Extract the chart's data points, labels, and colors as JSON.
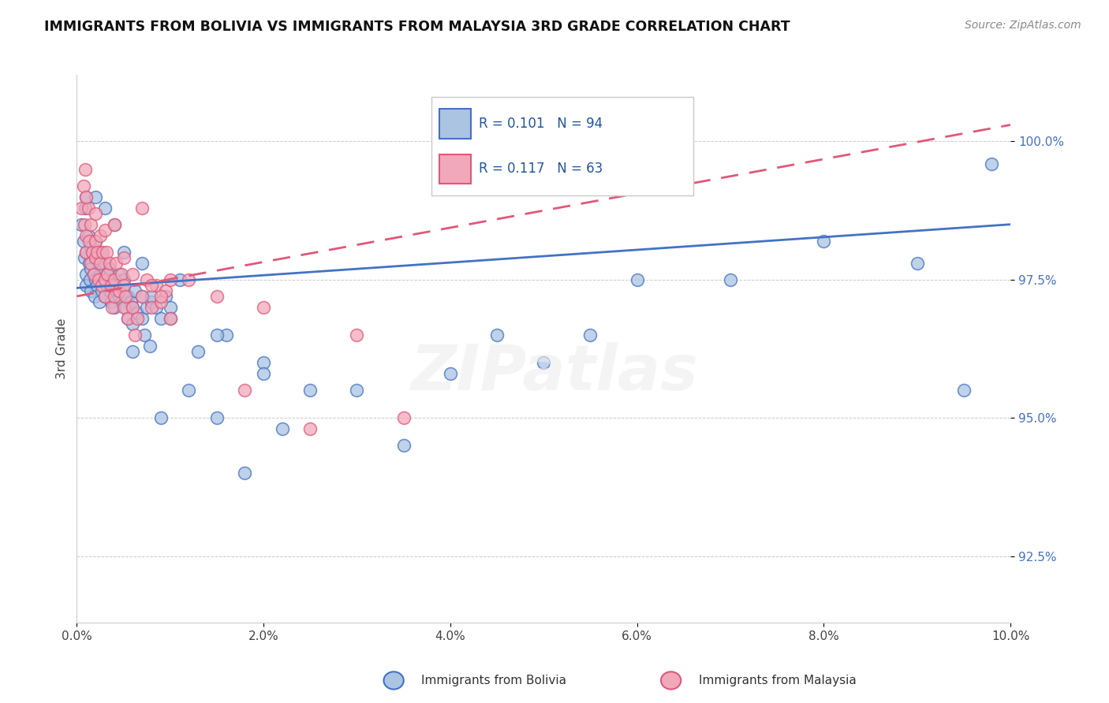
{
  "title": "IMMIGRANTS FROM BOLIVIA VS IMMIGRANTS FROM MALAYSIA 3RD GRADE CORRELATION CHART",
  "source": "Source: ZipAtlas.com",
  "xlabel_bolivia": "Immigrants from Bolivia",
  "xlabel_malaysia": "Immigrants from Malaysia",
  "ylabel": "3rd Grade",
  "xlim": [
    0.0,
    10.0
  ],
  "ylim": [
    91.3,
    101.2
  ],
  "yticks": [
    92.5,
    95.0,
    97.5,
    100.0
  ],
  "xticks": [
    0.0,
    2.0,
    4.0,
    6.0,
    8.0,
    10.0
  ],
  "xtick_labels": [
    "0.0%",
    "2.0%",
    "4.0%",
    "6.0%",
    "8.0%",
    "10.0%"
  ],
  "ytick_labels": [
    "92.5%",
    "95.0%",
    "97.5%",
    "100.0%"
  ],
  "color_bolivia": "#aac4e2",
  "color_malaysia": "#f2a8bb",
  "line_color_bolivia": "#4472c4",
  "line_color_malaysia": "#e05878",
  "R_bolivia": 0.101,
  "N_bolivia": 94,
  "R_malaysia": 0.117,
  "N_malaysia": 63,
  "legend_text_color": "#2155a0",
  "trendline_bolivia_x0": 0.0,
  "trendline_bolivia_y0": 97.35,
  "trendline_bolivia_x1": 10.0,
  "trendline_bolivia_y1": 98.5,
  "trendline_malaysia_x0": 0.0,
  "trendline_malaysia_y0": 97.2,
  "trendline_malaysia_x1": 10.0,
  "trendline_malaysia_y1": 100.3,
  "bolivia_x": [
    0.05,
    0.07,
    0.08,
    0.09,
    0.1,
    0.1,
    0.1,
    0.12,
    0.13,
    0.14,
    0.15,
    0.15,
    0.15,
    0.17,
    0.18,
    0.19,
    0.2,
    0.2,
    0.2,
    0.22,
    0.23,
    0.24,
    0.25,
    0.25,
    0.27,
    0.28,
    0.3,
    0.3,
    0.3,
    0.32,
    0.33,
    0.35,
    0.35,
    0.37,
    0.38,
    0.4,
    0.4,
    0.42,
    0.45,
    0.45,
    0.48,
    0.5,
    0.5,
    0.52,
    0.55,
    0.55,
    0.58,
    0.6,
    0.6,
    0.62,
    0.65,
    0.7,
    0.7,
    0.72,
    0.75,
    0.78,
    0.8,
    0.85,
    0.9,
    0.95,
    1.0,
    1.1,
    1.2,
    1.3,
    1.5,
    1.6,
    1.8,
    2.0,
    2.2,
    2.5,
    3.0,
    3.5,
    4.0,
    4.5,
    5.0,
    5.5,
    6.0,
    7.0,
    8.0,
    9.0,
    9.5,
    9.8,
    0.1,
    0.2,
    0.3,
    0.4,
    0.5,
    0.6,
    0.7,
    0.8,
    0.9,
    1.0,
    1.5,
    2.0
  ],
  "bolivia_y": [
    98.5,
    98.2,
    97.9,
    98.8,
    97.6,
    98.0,
    97.4,
    98.3,
    97.8,
    97.5,
    98.1,
    97.7,
    97.3,
    98.0,
    97.6,
    97.2,
    97.9,
    97.5,
    98.2,
    97.4,
    97.8,
    97.1,
    97.6,
    98.0,
    97.3,
    97.7,
    97.5,
    97.2,
    97.8,
    97.4,
    97.6,
    97.3,
    97.7,
    97.1,
    97.5,
    97.4,
    97.0,
    97.3,
    97.6,
    97.2,
    97.1,
    97.5,
    97.3,
    97.0,
    97.2,
    96.8,
    97.1,
    97.0,
    96.7,
    97.3,
    96.9,
    96.8,
    97.2,
    96.5,
    97.0,
    96.3,
    97.1,
    97.0,
    96.8,
    97.2,
    97.0,
    97.5,
    95.5,
    96.2,
    95.0,
    96.5,
    94.0,
    96.0,
    94.8,
    95.5,
    95.5,
    94.5,
    95.8,
    96.5,
    96.0,
    96.5,
    97.5,
    97.5,
    98.2,
    97.8,
    95.5,
    99.6,
    99.0,
    99.0,
    98.8,
    98.5,
    98.0,
    96.2,
    97.8,
    97.2,
    95.0,
    96.8,
    96.5,
    95.8
  ],
  "malaysia_x": [
    0.05,
    0.07,
    0.08,
    0.09,
    0.1,
    0.1,
    0.12,
    0.13,
    0.15,
    0.15,
    0.17,
    0.18,
    0.2,
    0.2,
    0.22,
    0.23,
    0.25,
    0.25,
    0.27,
    0.28,
    0.3,
    0.3,
    0.32,
    0.33,
    0.35,
    0.37,
    0.38,
    0.4,
    0.4,
    0.42,
    0.45,
    0.48,
    0.5,
    0.5,
    0.52,
    0.55,
    0.6,
    0.62,
    0.65,
    0.7,
    0.75,
    0.8,
    0.85,
    0.9,
    0.95,
    1.0,
    1.2,
    1.5,
    1.8,
    2.0,
    2.5,
    3.0,
    3.5,
    0.1,
    0.2,
    0.3,
    0.4,
    0.5,
    0.6,
    0.7,
    0.8,
    0.9,
    1.0
  ],
  "malaysia_y": [
    98.8,
    99.2,
    98.5,
    99.5,
    98.3,
    98.0,
    98.8,
    98.2,
    97.8,
    98.5,
    98.0,
    97.6,
    98.2,
    97.9,
    98.0,
    97.5,
    97.8,
    98.3,
    97.4,
    98.0,
    97.5,
    97.2,
    98.0,
    97.6,
    97.8,
    97.4,
    97.0,
    97.5,
    97.2,
    97.8,
    97.3,
    97.6,
    97.4,
    97.0,
    97.2,
    96.8,
    97.0,
    96.5,
    96.8,
    97.2,
    97.5,
    97.0,
    97.4,
    97.1,
    97.3,
    96.8,
    97.5,
    97.2,
    95.5,
    97.0,
    94.8,
    96.5,
    95.0,
    99.0,
    98.7,
    98.4,
    98.5,
    97.9,
    97.6,
    98.8,
    97.4,
    97.2,
    97.5
  ]
}
